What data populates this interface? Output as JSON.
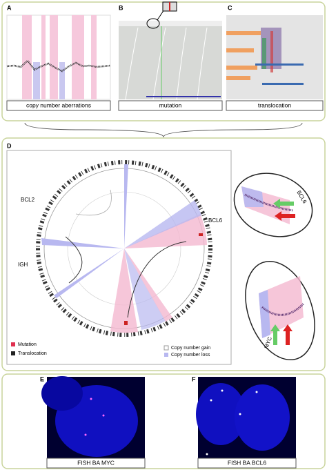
{
  "panels": [
    {
      "label": "A",
      "caption": "copy number aberrations"
    },
    {
      "label": "B",
      "caption": "mutation"
    },
    {
      "label": "C",
      "caption": "translocation"
    }
  ],
  "circos": {
    "label": "D",
    "genes": [
      "BCL2",
      "BCL6",
      "IGH"
    ],
    "insets": [
      "BCL6",
      "MYC"
    ],
    "legend": [
      "Mutation",
      "Translocation",
      "Copy number gain",
      "Copy number loss"
    ]
  },
  "fish": [
    {
      "label": "E",
      "caption": "FISH BA MYC"
    },
    {
      "label": "F",
      "caption": "FISH BA BCL6"
    }
  ]
}
